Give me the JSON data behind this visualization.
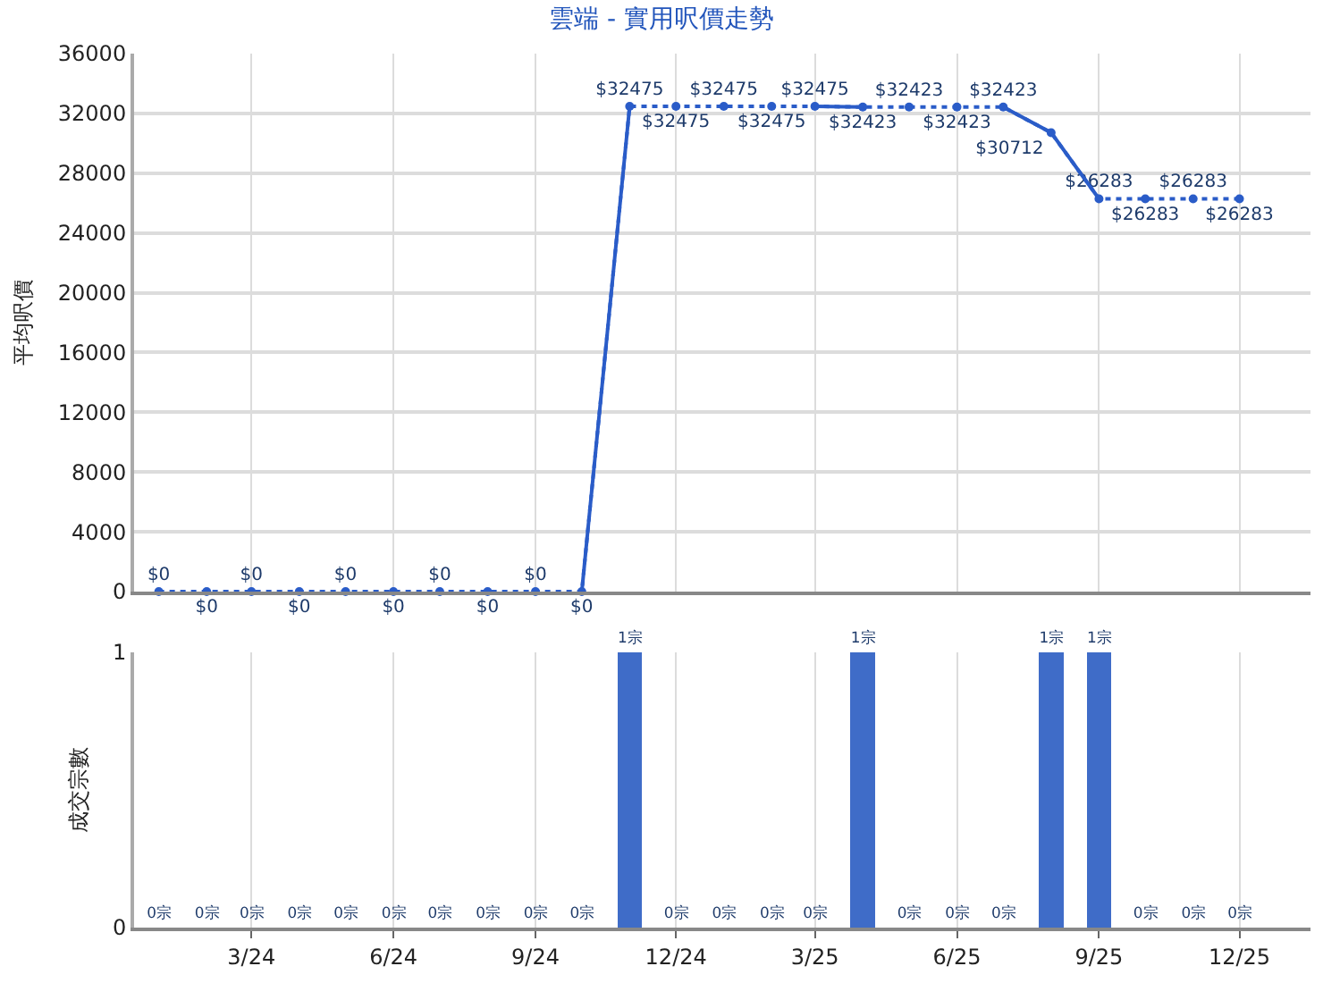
{
  "chart_data": [
    {
      "type": "line",
      "title": "雲端 - 實用呎價走勢",
      "ylabel": "平均呎價",
      "x": [
        "2024-01",
        "2024-02",
        "2024-03",
        "2024-04",
        "2024-05",
        "2024-06",
        "2024-07",
        "2024-08",
        "2024-09",
        "2024-10",
        "2024-11",
        "2024-12",
        "2025-01",
        "2025-02",
        "2025-03",
        "2025-04",
        "2025-05",
        "2025-06",
        "2025-07",
        "2025-08",
        "2025-09",
        "2025-10",
        "2025-11",
        "2025-12"
      ],
      "series": [
        {
          "color": "#2a5cc8",
          "line_style": "dotted",
          "marker": "circle",
          "values": [
            0,
            0,
            0,
            0,
            0,
            0,
            0,
            0,
            0,
            0,
            32475,
            32475,
            32475,
            32475,
            32475,
            32423,
            32423,
            32423,
            32423,
            30712,
            26283,
            26283,
            26283,
            26283
          ],
          "value_labels": [
            "$0",
            "$0",
            "$0",
            "$0",
            "$0",
            "$0",
            "$0",
            "$0",
            "$0",
            "$0",
            "$32475",
            "$32475",
            "$32475",
            "$32475",
            "$32475",
            "$32423",
            "$32423",
            "$32423",
            "$32423",
            "$30712",
            "$26283",
            "$26283",
            "$26283",
            "$26283"
          ]
        },
        {
          "color": "#2a5cc8",
          "line_style": "solid",
          "marker": "none",
          "values": [
            null,
            null,
            null,
            null,
            null,
            null,
            null,
            null,
            null,
            0,
            32475,
            null,
            null,
            null,
            32475,
            32423,
            null,
            null,
            32423,
            30712,
            26283,
            null,
            null,
            null
          ]
        }
      ],
      "xlim": [
        "2023-12-16",
        "2026-01-16"
      ],
      "xticks": [
        {
          "value": "2024-03",
          "label": null
        },
        {
          "value": "2024-06",
          "label": null
        },
        {
          "value": "2024-09",
          "label": null
        },
        {
          "value": "2024-12",
          "label": null
        },
        {
          "value": "2025-03",
          "label": null
        },
        {
          "value": "2025-06",
          "label": null
        },
        {
          "value": "2025-09",
          "label": null
        },
        {
          "value": "2025-12",
          "label": null
        }
      ],
      "ylim": [
        0,
        36000
      ],
      "yticks": [
        0,
        4000,
        8000,
        12000,
        16000,
        20000,
        24000,
        28000,
        32000,
        36000
      ],
      "grid": true,
      "tick_labels": "y"
    },
    {
      "type": "bar",
      "ylabel": "成交宗數",
      "x": [
        "2024-01",
        "2024-02",
        "2024-03",
        "2024-04",
        "2024-05",
        "2024-06",
        "2024-07",
        "2024-08",
        "2024-09",
        "2024-10",
        "2024-11",
        "2024-12",
        "2025-01",
        "2025-02",
        "2025-03",
        "2025-04",
        "2025-05",
        "2025-06",
        "2025-07",
        "2025-08",
        "2025-09",
        "2025-10",
        "2025-11",
        "2025-12"
      ],
      "values": [
        0,
        0,
        0,
        0,
        0,
        0,
        0,
        0,
        0,
        0,
        1,
        0,
        0,
        0,
        0,
        1,
        0,
        0,
        0,
        1,
        1,
        0,
        0,
        0
      ],
      "value_labels": [
        "0宗",
        "0宗",
        "0宗",
        "0宗",
        "0宗",
        "0宗",
        "0宗",
        "0宗",
        "0宗",
        "0宗",
        "1宗",
        "0宗",
        "0宗",
        "0宗",
        "0宗",
        "1宗",
        "0宗",
        "0宗",
        "0宗",
        "1宗",
        "1宗",
        "0宗",
        "0宗",
        "0宗"
      ],
      "color": "#3f6cc8",
      "xlim": [
        "2023-12-16",
        "2026-01-16"
      ],
      "xticks": [
        {
          "value": "2024-03",
          "label": "3/24"
        },
        {
          "value": "2024-06",
          "label": "6/24"
        },
        {
          "value": "2024-09",
          "label": "9/24"
        },
        {
          "value": "2024-12",
          "label": "12/24"
        },
        {
          "value": "2025-03",
          "label": "3/25"
        },
        {
          "value": "2025-06",
          "label": "6/25"
        },
        {
          "value": "2025-09",
          "label": "9/25"
        },
        {
          "value": "2025-12",
          "label": "12/25"
        }
      ],
      "ylim": [
        0,
        1
      ],
      "yticks": [
        0,
        1
      ],
      "grid": true
    }
  ]
}
